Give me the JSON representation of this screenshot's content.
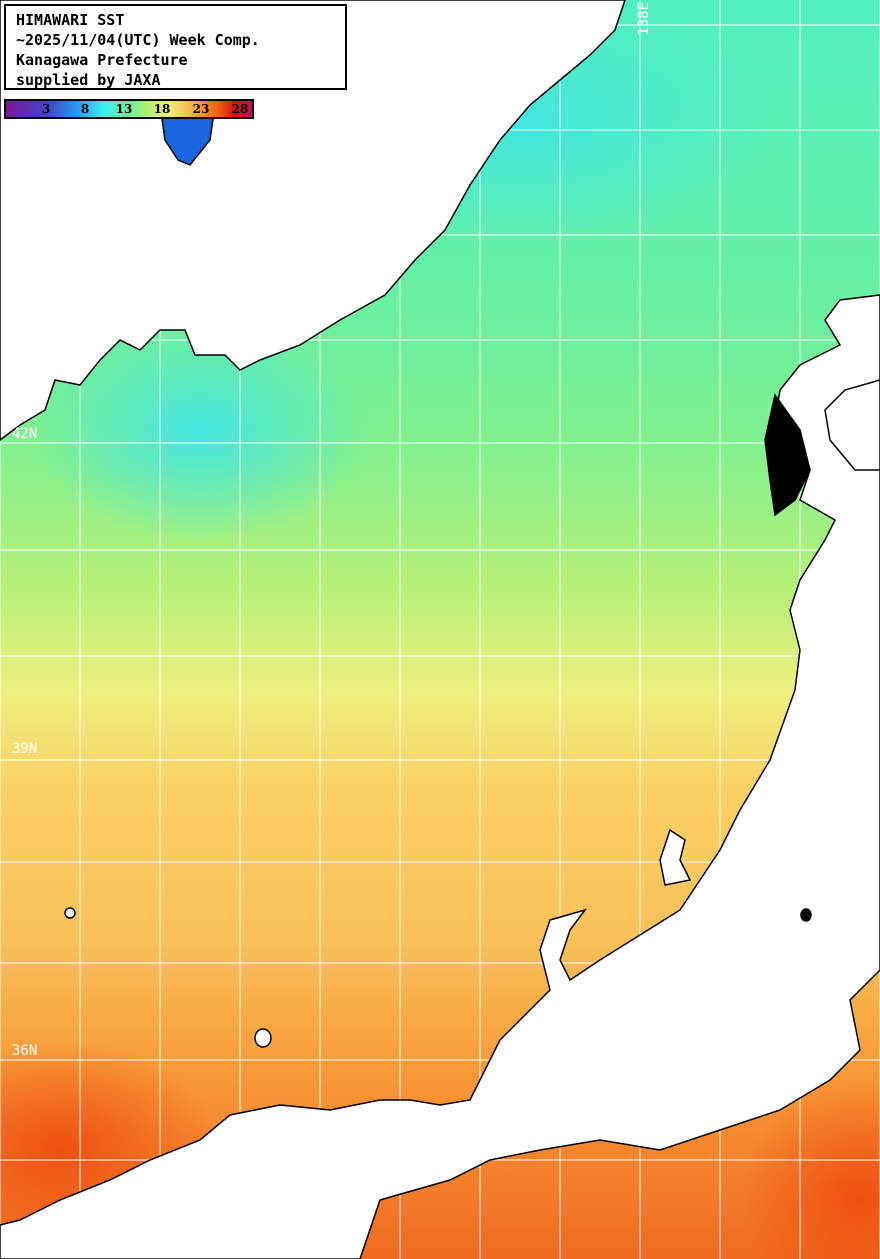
{
  "title": {
    "lines": [
      "HIMAWARI SST",
      "~2025/11/04(UTC) Week Comp.",
      "Kanagawa Prefecture",
      "supplied by JAXA"
    ]
  },
  "colorbar": {
    "unit_hint": "SST",
    "labels": [
      "3",
      "8",
      "13",
      "18",
      "23",
      "28"
    ],
    "colors": [
      "#7a1696",
      "#2ba0f0",
      "#3cf0f0",
      "#6ef09a",
      "#f0f080",
      "#f8b040",
      "#f06010",
      "#c0105a"
    ]
  },
  "grid": {
    "lon_label": "138E",
    "lat_labels": [
      "42N",
      "39N",
      "36N"
    ]
  },
  "colors": {
    "land": "#ffffff",
    "grid": "#ffffff",
    "coast": "#000000"
  }
}
